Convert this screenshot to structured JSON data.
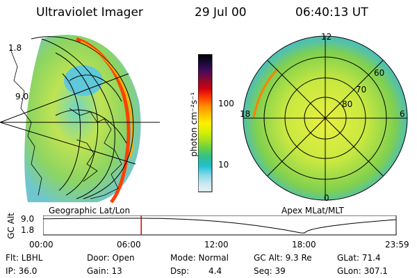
{
  "header": {
    "title": "Ultraviolet Imager",
    "date": "29 Jul 00",
    "time": "06:40:13 UT"
  },
  "left_panel": {
    "caption": "Geographic Lat/Lon",
    "latitude_labels": [
      "1.8",
      "9.0"
    ]
  },
  "colorbar": {
    "unit_label": "photon cm⁻²s⁻¹",
    "ticks": [
      "100",
      "10"
    ],
    "colors": [
      "#000000",
      "#1a0a3a",
      "#4b0a5a",
      "#8a0a2a",
      "#d00010",
      "#ff3b00",
      "#ff8a00",
      "#ffc000",
      "#fff000",
      "#d8f000",
      "#a8e020",
      "#5fd04a",
      "#30c090",
      "#20c0d0",
      "#80d8e8",
      "#c8e8f0",
      "#e8f2f6"
    ]
  },
  "right_panel": {
    "caption": "Apex MLat/MLT",
    "mlt_labels": [
      "12",
      "18",
      "6",
      "0"
    ],
    "mlat_labels": [
      "60",
      "70",
      "80"
    ]
  },
  "timeline": {
    "axis_label": "GC Alt",
    "y_ticks": [
      "9.0",
      "1.8"
    ],
    "x_ticks": [
      "00:00",
      "06:00",
      "12:00",
      "18:00",
      "23:59"
    ],
    "marker_hours": 6.67,
    "marker_color": "#cc0000"
  },
  "status": {
    "filter": "Flt: LBHL",
    "ip": "IP: 36.0",
    "door": "Door: Open",
    "gain": "Gain: 13",
    "mode": "Mode: Normal",
    "dsp_label": "Dsp:",
    "dsp_value": "4.4",
    "gc_alt": "GC Alt: 9.3 Re",
    "seq": "Seq: 39",
    "glat": "GLat: 71.4",
    "glon": "GLon: 307.1"
  }
}
